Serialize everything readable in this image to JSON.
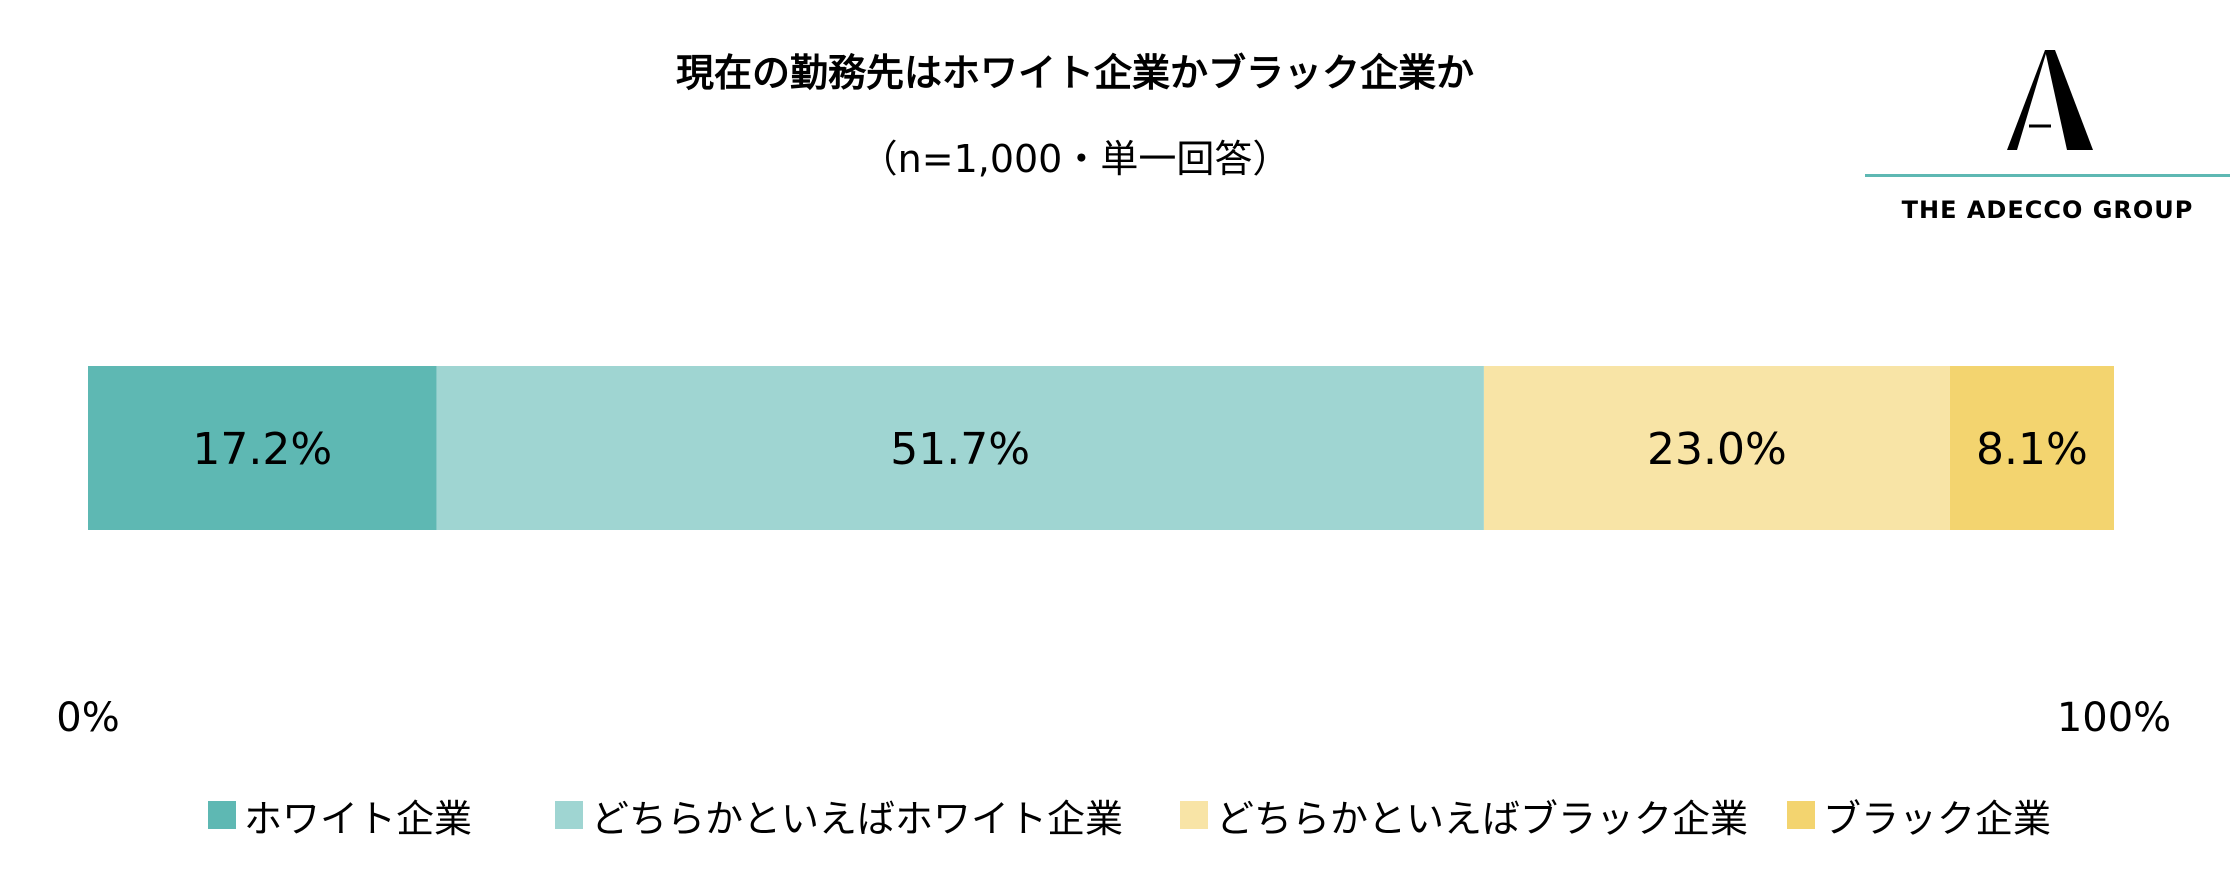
{
  "title": "現在の勤務先はホワイト企業かブラック企業か",
  "subtitle": "（n=1,000・単一回答）",
  "logo": {
    "text": "THE ADECCO GROUP",
    "icon": "adecco-a-icon",
    "accent": "#5eb8b3"
  },
  "chart_data": {
    "type": "bar",
    "orientation": "horizontal-stacked-100",
    "categories": [
      "ホワイト企業",
      "どちらかといえばホワイト企業",
      "どちらかといえばブラック企業",
      "ブラック企業"
    ],
    "values": [
      17.2,
      51.7,
      23.0,
      8.1
    ],
    "data_labels": [
      "17.2%",
      "51.7%",
      "23.0%",
      "8.1%"
    ],
    "colors": [
      "#5eb8b3",
      "#9fd5d2",
      "#f8e4a6",
      "#f3d46f"
    ],
    "xlim": [
      0,
      100
    ],
    "tick_labels": [
      "0%",
      "100%"
    ],
    "legend": {
      "placement": "bottom",
      "entries": [
        "ホワイト企業",
        "どちらかといえばホワイト企業",
        "どちらかといえばブラック企業",
        "ブラック企業"
      ]
    },
    "grid": false
  }
}
